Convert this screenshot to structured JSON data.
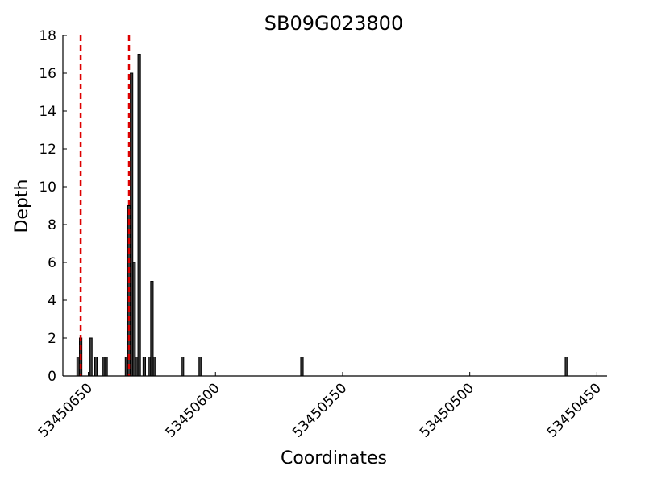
{
  "chart_data": {
    "type": "bar",
    "title": "SB09G023800",
    "xlabel": "Coordinates",
    "ylabel": "Depth",
    "x_reversed": true,
    "xlim": [
      53450660,
      53450446
    ],
    "ylim": [
      0,
      18
    ],
    "grid": false,
    "bar_width": 1,
    "x_ticks": [
      53450650,
      53450600,
      53450550,
      53450500,
      53450450
    ],
    "x_tick_labels": [
      "53450650",
      "53450600",
      "53450550",
      "53450500",
      "53450450"
    ],
    "y_ticks": [
      0,
      2,
      4,
      6,
      8,
      10,
      12,
      14,
      16,
      18
    ],
    "y_tick_labels": [
      "0",
      "2",
      "4",
      "6",
      "8",
      "10",
      "12",
      "14",
      "16",
      "18"
    ],
    "x": [
      53450654,
      53450653,
      53450649,
      53450647,
      53450644,
      53450643,
      53450635,
      53450634,
      53450633,
      53450632,
      53450631,
      53450630,
      53450628,
      53450626,
      53450625,
      53450624,
      53450613,
      53450606,
      53450566,
      53450462
    ],
    "values": [
      1,
      2,
      2,
      1,
      1,
      1,
      1,
      9,
      16,
      6,
      1,
      17,
      1,
      1,
      5,
      1,
      1,
      1,
      1,
      1
    ],
    "marker_lines": [
      53450653,
      53450634
    ],
    "marker_color": "#dd0000",
    "bar_color": "#3c3c3c"
  }
}
